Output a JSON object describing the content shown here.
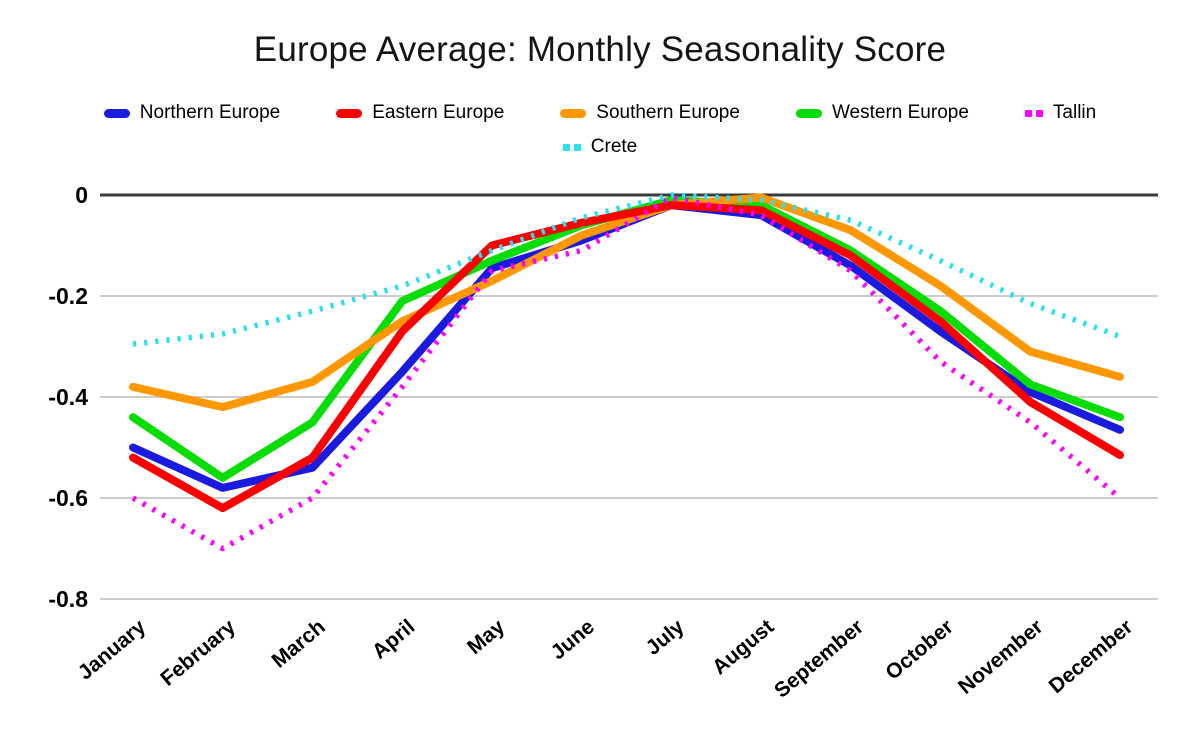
{
  "title": "Europe Average: Monthly Seasonality Score",
  "chart_data": {
    "type": "line",
    "categories": [
      "January",
      "February",
      "March",
      "April",
      "May",
      "June",
      "July",
      "August",
      "September",
      "October",
      "November",
      "December"
    ],
    "ytick_labels": [
      "0",
      "-0.2",
      "-0.4",
      "-0.6",
      "-0.8"
    ],
    "yticks": [
      0,
      -0.2,
      -0.4,
      -0.6,
      -0.8
    ],
    "ylim": [
      -0.8,
      0.02
    ],
    "grid": true,
    "legend_position": "top",
    "series": [
      {
        "name": "Northern Europe",
        "color": "#1b1be0",
        "style": "solid",
        "values": [
          -0.5,
          -0.58,
          -0.54,
          -0.35,
          -0.145,
          -0.09,
          -0.02,
          -0.04,
          -0.14,
          -0.27,
          -0.39,
          -0.465
        ]
      },
      {
        "name": "Eastern Europe",
        "color": "#fb0000",
        "style": "solid",
        "values": [
          -0.52,
          -0.62,
          -0.52,
          -0.27,
          -0.1,
          -0.055,
          -0.02,
          -0.03,
          -0.12,
          -0.25,
          -0.41,
          -0.515
        ]
      },
      {
        "name": "Southern Europe",
        "color": "#ff9800",
        "style": "solid",
        "values": [
          -0.38,
          -0.42,
          -0.37,
          -0.25,
          -0.17,
          -0.08,
          -0.02,
          -0.005,
          -0.07,
          -0.18,
          -0.31,
          -0.36
        ]
      },
      {
        "name": "Western Europe",
        "color": "#05dd05",
        "style": "solid",
        "values": [
          -0.44,
          -0.56,
          -0.45,
          -0.21,
          -0.13,
          -0.06,
          -0.01,
          -0.02,
          -0.11,
          -0.23,
          -0.375,
          -0.44
        ]
      },
      {
        "name": "Tallin",
        "color": "#ff00ff",
        "style": "dotted",
        "values": [
          -0.6,
          -0.7,
          -0.6,
          -0.38,
          -0.15,
          -0.11,
          -0.005,
          -0.04,
          -0.15,
          -0.33,
          -0.45,
          -0.6
        ]
      },
      {
        "name": "Crete",
        "color": "#2adfef",
        "style": "dotted",
        "values": [
          -0.295,
          -0.275,
          -0.23,
          -0.18,
          -0.11,
          -0.045,
          0.0,
          -0.01,
          -0.05,
          -0.13,
          -0.215,
          -0.28
        ]
      }
    ]
  }
}
